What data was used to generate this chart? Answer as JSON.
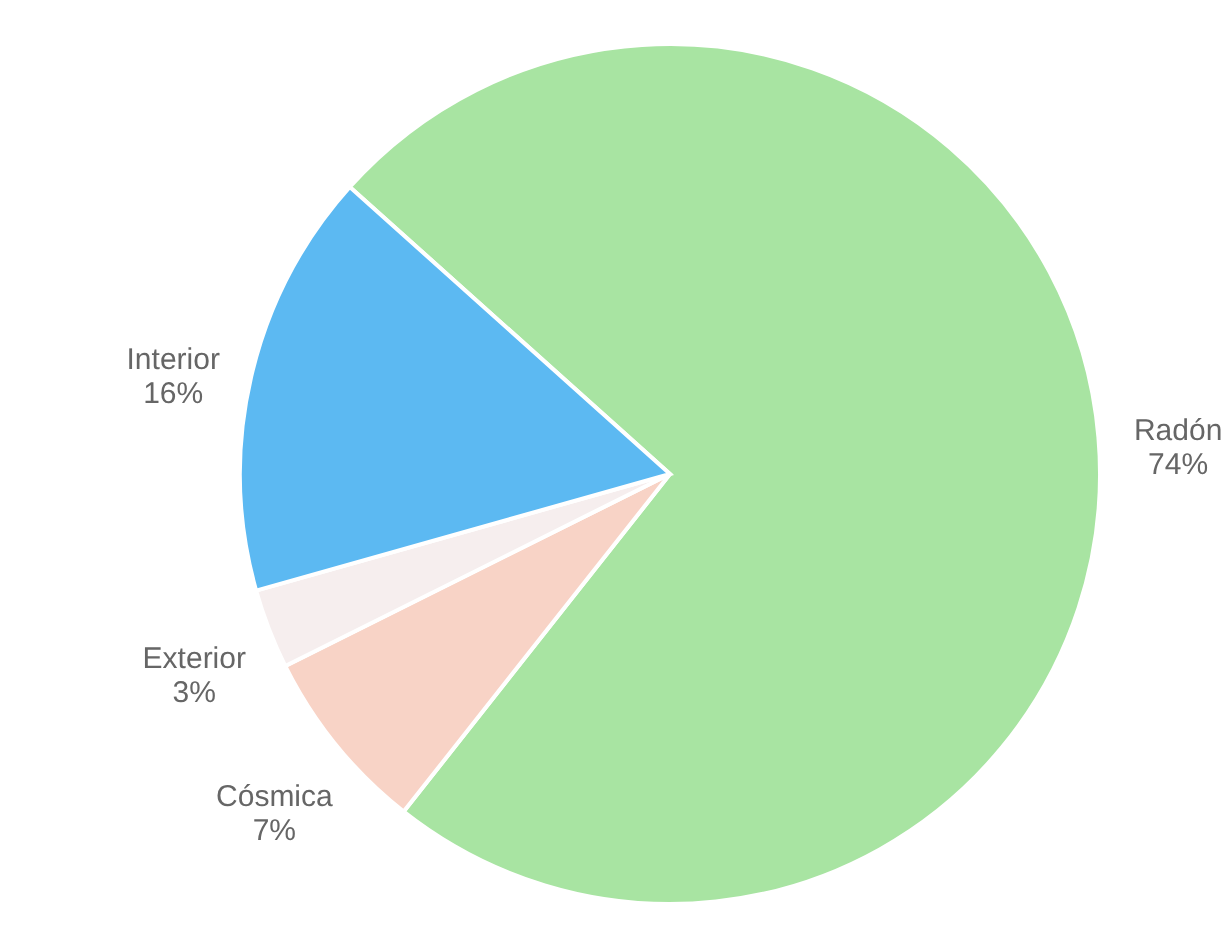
{
  "chart_data": {
    "type": "pie",
    "categories": [
      "Radón",
      "Cósmica",
      "Exterior",
      "Interior"
    ],
    "values": [
      74,
      7,
      3,
      16
    ],
    "colors": [
      "#a8e4a2",
      "#f8d3c6",
      "#f6eeee",
      "#5cb9f2"
    ],
    "value_labels": [
      "74%",
      "7%",
      "3%",
      "16%"
    ]
  }
}
